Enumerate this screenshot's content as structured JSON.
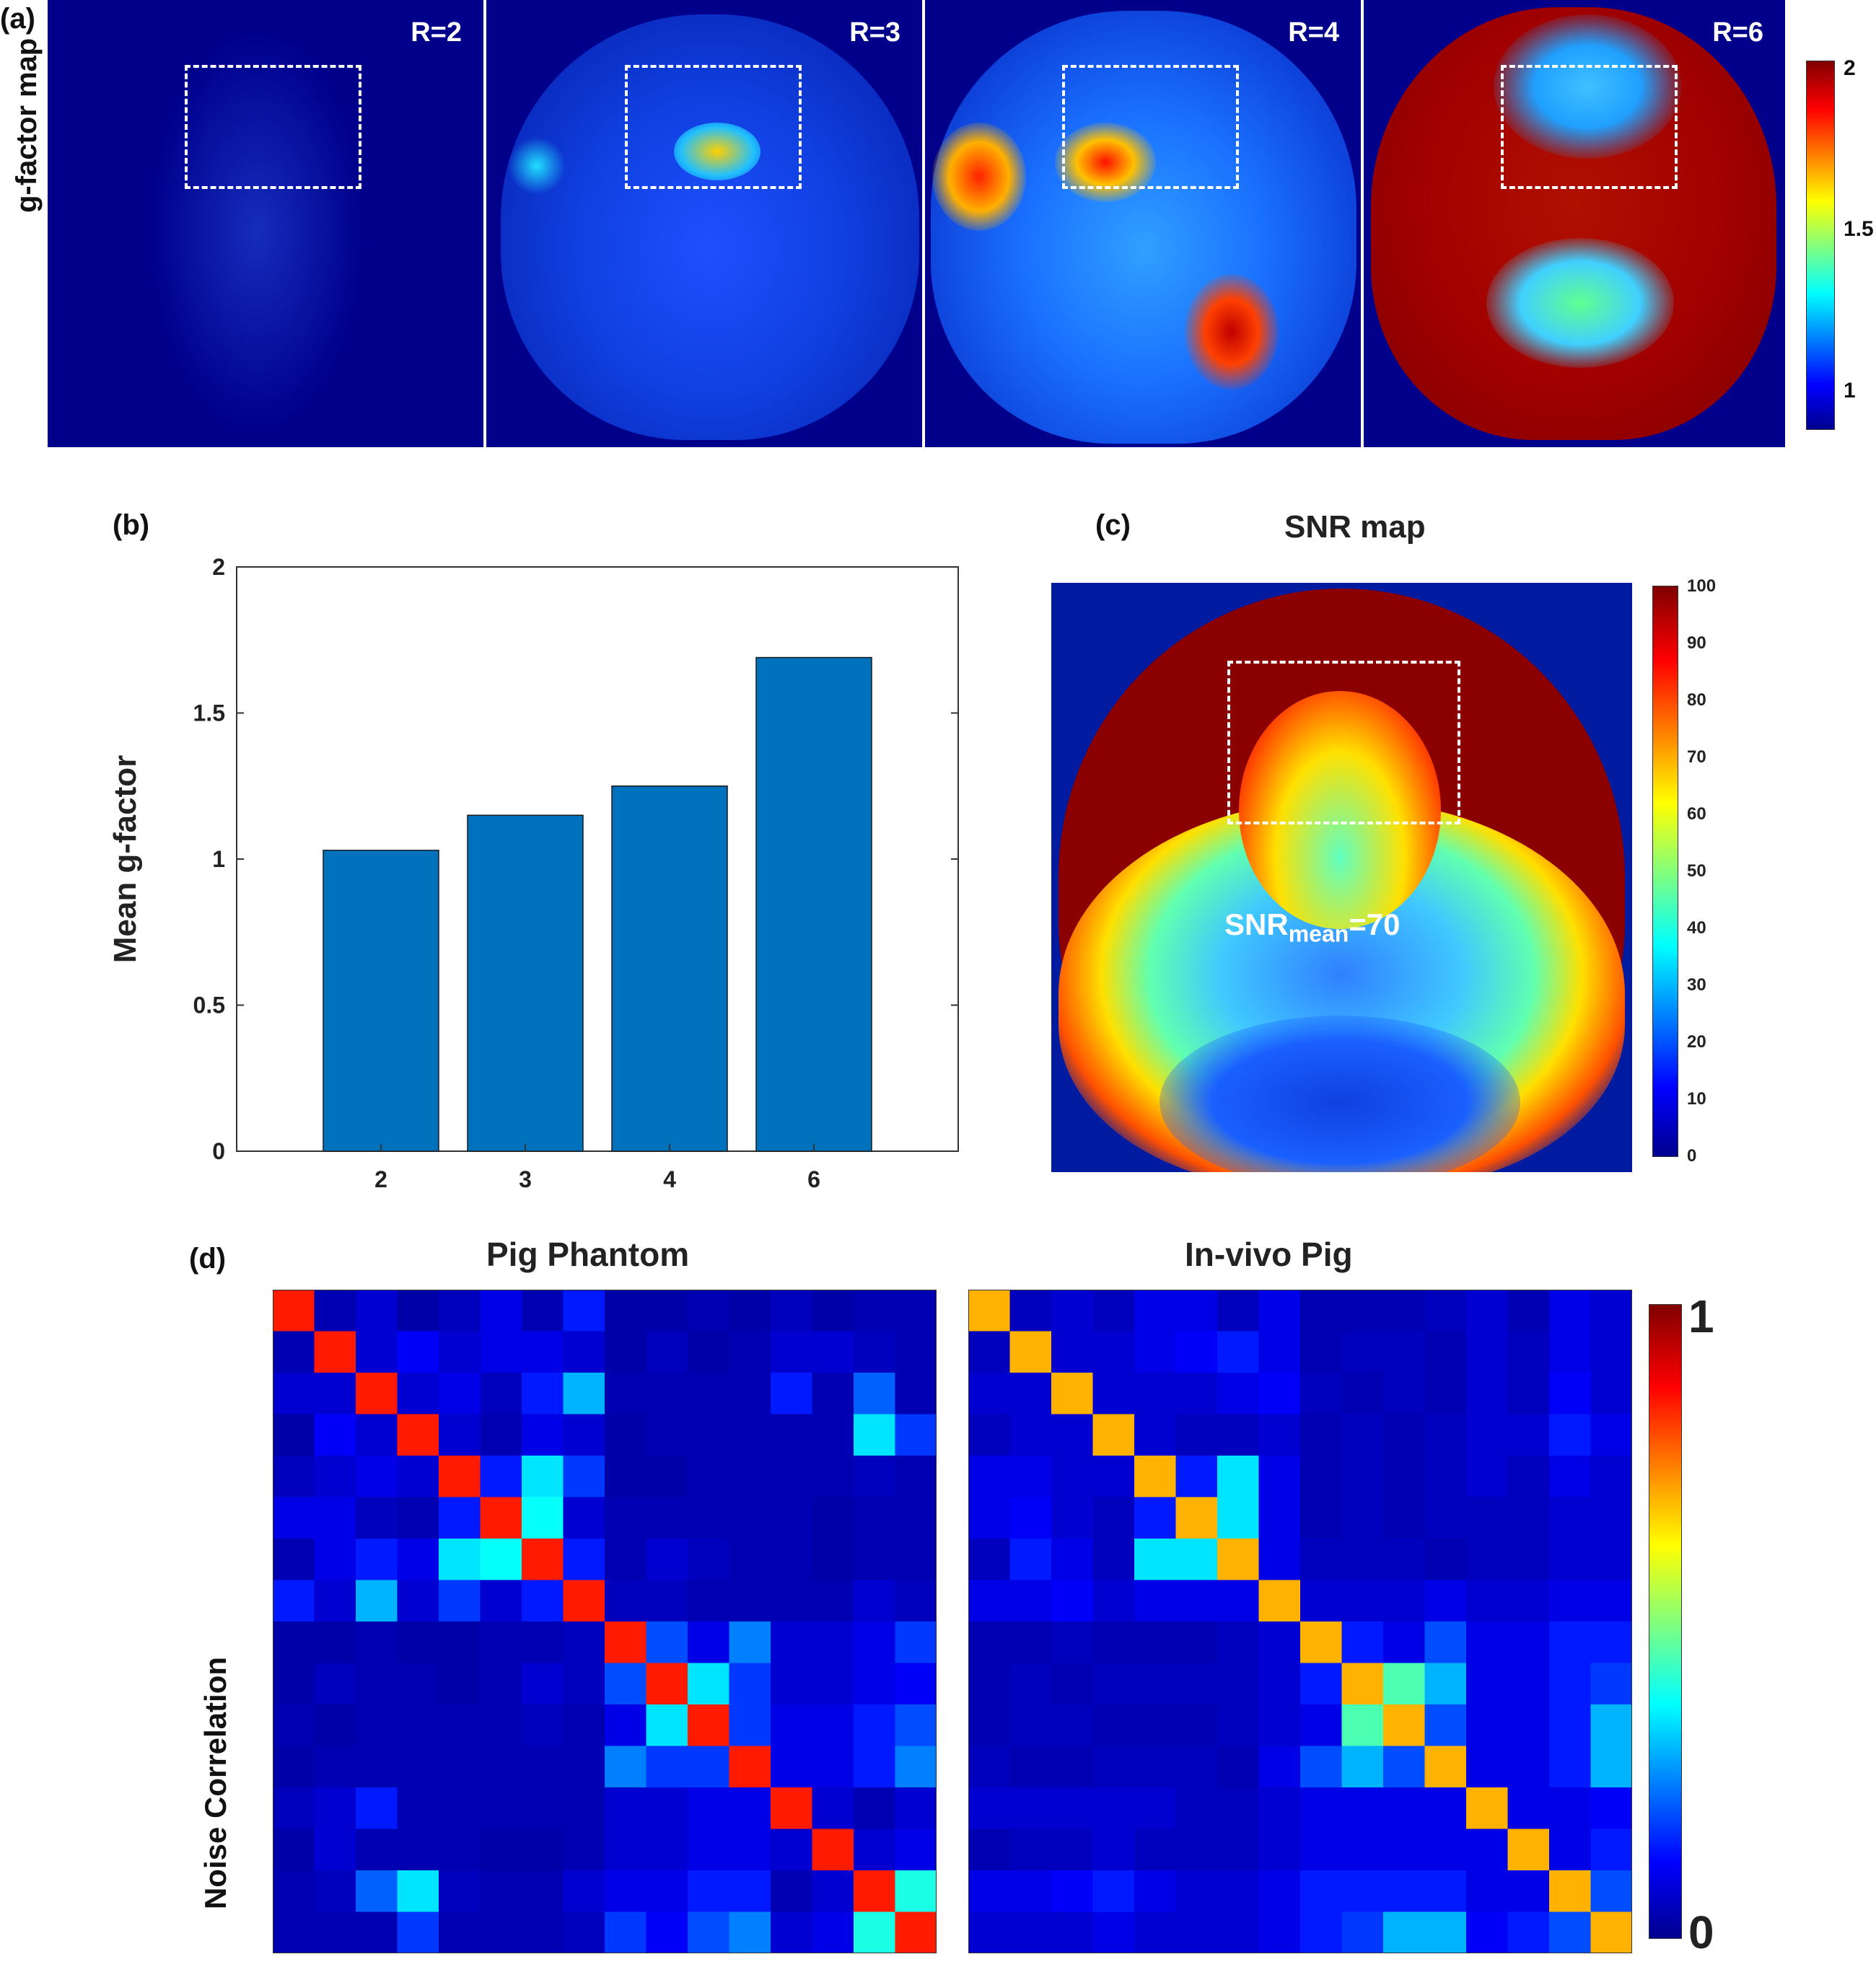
{
  "panel_a": {
    "letter": "(a)",
    "row_label": "g-factor map",
    "maps": [
      "R=2",
      "R=3",
      "R=4",
      "R=6"
    ],
    "colorbar_ticks": [
      "2",
      "1.5",
      "1"
    ],
    "colorbar_range": [
      0.9,
      2
    ]
  },
  "panel_b": {
    "letter": "(b)"
  },
  "panel_c": {
    "letter": "(c)",
    "title": "SNR map",
    "annotation_main": "SNR",
    "annotation_sub": "mean",
    "annotation_value": "=70",
    "colorbar_ticks": [
      "100",
      "90",
      "80",
      "70",
      "60",
      "50",
      "40",
      "30",
      "20",
      "10",
      "0"
    ]
  },
  "panel_d": {
    "letter": "(d)",
    "ylabel": "Noise Correlation",
    "titles": [
      "Pig Phantom",
      "In-vivo Pig"
    ],
    "colorbar_ticks": [
      "1",
      "0"
    ]
  },
  "colors": {
    "bar": "#0072bd",
    "jet_dark_red": "#800000",
    "jet_dark_blue": "#00008b"
  },
  "chart_data": [
    {
      "type": "bar",
      "categories": [
        "2",
        "3",
        "4",
        "6"
      ],
      "values": [
        1.03,
        1.15,
        1.25,
        1.69
      ],
      "title": "",
      "xlabel": "",
      "ylabel": "Mean g-factor",
      "ylim": [
        0,
        2
      ],
      "yticks": [
        "0",
        "0.5",
        "1",
        "1.5",
        "2"
      ]
    },
    {
      "type": "heatmap",
      "title": "Pig Phantom",
      "range": [
        0,
        1
      ],
      "matrix": [
        [
          0.85,
          0.05,
          0.08,
          0.04,
          0.06,
          0.1,
          0.05,
          0.15,
          0.04,
          0.04,
          0.05,
          0.04,
          0.06,
          0.04,
          0.05,
          0.05
        ],
        [
          0.05,
          0.85,
          0.08,
          0.12,
          0.08,
          0.1,
          0.1,
          0.08,
          0.04,
          0.06,
          0.04,
          0.05,
          0.08,
          0.08,
          0.06,
          0.05
        ],
        [
          0.08,
          0.08,
          0.85,
          0.08,
          0.1,
          0.06,
          0.15,
          0.3,
          0.05,
          0.05,
          0.05,
          0.05,
          0.15,
          0.05,
          0.22,
          0.05
        ],
        [
          0.04,
          0.12,
          0.08,
          0.85,
          0.08,
          0.05,
          0.1,
          0.08,
          0.04,
          0.05,
          0.05,
          0.05,
          0.05,
          0.05,
          0.35,
          0.18
        ],
        [
          0.06,
          0.08,
          0.1,
          0.08,
          0.85,
          0.15,
          0.35,
          0.18,
          0.04,
          0.04,
          0.05,
          0.05,
          0.05,
          0.05,
          0.06,
          0.05
        ],
        [
          0.1,
          0.1,
          0.06,
          0.05,
          0.15,
          0.85,
          0.38,
          0.08,
          0.05,
          0.05,
          0.05,
          0.05,
          0.05,
          0.04,
          0.05,
          0.05
        ],
        [
          0.05,
          0.1,
          0.15,
          0.1,
          0.35,
          0.38,
          0.85,
          0.15,
          0.05,
          0.08,
          0.06,
          0.05,
          0.05,
          0.04,
          0.05,
          0.05
        ],
        [
          0.15,
          0.08,
          0.3,
          0.08,
          0.18,
          0.08,
          0.15,
          0.85,
          0.06,
          0.06,
          0.05,
          0.05,
          0.05,
          0.05,
          0.08,
          0.06
        ],
        [
          0.04,
          0.04,
          0.05,
          0.04,
          0.04,
          0.05,
          0.05,
          0.06,
          0.85,
          0.2,
          0.1,
          0.25,
          0.08,
          0.08,
          0.1,
          0.18
        ],
        [
          0.04,
          0.06,
          0.05,
          0.05,
          0.04,
          0.05,
          0.08,
          0.06,
          0.2,
          0.85,
          0.35,
          0.18,
          0.08,
          0.08,
          0.1,
          0.12
        ],
        [
          0.05,
          0.04,
          0.05,
          0.05,
          0.05,
          0.05,
          0.06,
          0.05,
          0.1,
          0.35,
          0.85,
          0.18,
          0.1,
          0.1,
          0.15,
          0.2
        ],
        [
          0.04,
          0.05,
          0.05,
          0.05,
          0.05,
          0.05,
          0.05,
          0.05,
          0.25,
          0.18,
          0.18,
          0.85,
          0.1,
          0.1,
          0.15,
          0.25
        ],
        [
          0.06,
          0.08,
          0.15,
          0.05,
          0.05,
          0.05,
          0.05,
          0.05,
          0.08,
          0.08,
          0.1,
          0.1,
          0.85,
          0.08,
          0.05,
          0.08
        ],
        [
          0.04,
          0.08,
          0.05,
          0.05,
          0.05,
          0.04,
          0.04,
          0.05,
          0.08,
          0.08,
          0.1,
          0.1,
          0.08,
          0.85,
          0.08,
          0.1
        ],
        [
          0.05,
          0.06,
          0.22,
          0.35,
          0.06,
          0.05,
          0.05,
          0.08,
          0.1,
          0.1,
          0.15,
          0.15,
          0.05,
          0.08,
          0.85,
          0.4
        ],
        [
          0.05,
          0.05,
          0.05,
          0.18,
          0.05,
          0.05,
          0.05,
          0.06,
          0.18,
          0.12,
          0.2,
          0.25,
          0.08,
          0.1,
          0.4,
          0.85
        ]
      ]
    },
    {
      "type": "heatmap",
      "title": "In-vivo Pig",
      "range": [
        0,
        1
      ],
      "matrix": [
        [
          0.7,
          0.06,
          0.08,
          0.06,
          0.1,
          0.1,
          0.06,
          0.1,
          0.05,
          0.05,
          0.05,
          0.06,
          0.08,
          0.05,
          0.1,
          0.08
        ],
        [
          0.06,
          0.7,
          0.08,
          0.08,
          0.1,
          0.12,
          0.15,
          0.1,
          0.05,
          0.06,
          0.06,
          0.05,
          0.08,
          0.06,
          0.1,
          0.08
        ],
        [
          0.08,
          0.08,
          0.7,
          0.08,
          0.08,
          0.08,
          0.1,
          0.12,
          0.06,
          0.05,
          0.06,
          0.05,
          0.08,
          0.06,
          0.12,
          0.08
        ],
        [
          0.06,
          0.08,
          0.08,
          0.7,
          0.08,
          0.06,
          0.06,
          0.08,
          0.05,
          0.06,
          0.05,
          0.06,
          0.08,
          0.08,
          0.15,
          0.1
        ],
        [
          0.1,
          0.1,
          0.08,
          0.08,
          0.7,
          0.15,
          0.35,
          0.1,
          0.05,
          0.06,
          0.05,
          0.06,
          0.08,
          0.06,
          0.1,
          0.08
        ],
        [
          0.1,
          0.12,
          0.08,
          0.06,
          0.15,
          0.7,
          0.35,
          0.1,
          0.05,
          0.06,
          0.05,
          0.06,
          0.06,
          0.06,
          0.08,
          0.08
        ],
        [
          0.06,
          0.15,
          0.1,
          0.06,
          0.35,
          0.35,
          0.7,
          0.1,
          0.06,
          0.06,
          0.06,
          0.05,
          0.06,
          0.06,
          0.08,
          0.08
        ],
        [
          0.1,
          0.1,
          0.12,
          0.08,
          0.1,
          0.1,
          0.1,
          0.7,
          0.08,
          0.08,
          0.08,
          0.1,
          0.08,
          0.08,
          0.1,
          0.1
        ],
        [
          0.05,
          0.05,
          0.06,
          0.05,
          0.05,
          0.05,
          0.06,
          0.08,
          0.7,
          0.15,
          0.1,
          0.2,
          0.1,
          0.1,
          0.15,
          0.15
        ],
        [
          0.05,
          0.06,
          0.05,
          0.06,
          0.06,
          0.06,
          0.06,
          0.08,
          0.15,
          0.7,
          0.45,
          0.3,
          0.1,
          0.1,
          0.15,
          0.18
        ],
        [
          0.05,
          0.06,
          0.06,
          0.05,
          0.05,
          0.05,
          0.06,
          0.08,
          0.1,
          0.45,
          0.7,
          0.2,
          0.1,
          0.1,
          0.15,
          0.3
        ],
        [
          0.06,
          0.05,
          0.05,
          0.06,
          0.06,
          0.06,
          0.05,
          0.1,
          0.2,
          0.3,
          0.2,
          0.7,
          0.1,
          0.1,
          0.15,
          0.3
        ],
        [
          0.08,
          0.08,
          0.08,
          0.08,
          0.08,
          0.06,
          0.06,
          0.08,
          0.1,
          0.1,
          0.1,
          0.1,
          0.7,
          0.1,
          0.1,
          0.12
        ],
        [
          0.05,
          0.06,
          0.06,
          0.08,
          0.06,
          0.06,
          0.06,
          0.08,
          0.1,
          0.1,
          0.1,
          0.1,
          0.1,
          0.7,
          0.1,
          0.15
        ],
        [
          0.1,
          0.1,
          0.12,
          0.15,
          0.1,
          0.08,
          0.08,
          0.1,
          0.15,
          0.15,
          0.15,
          0.15,
          0.1,
          0.1,
          0.7,
          0.2
        ],
        [
          0.08,
          0.08,
          0.08,
          0.1,
          0.08,
          0.08,
          0.08,
          0.1,
          0.15,
          0.18,
          0.3,
          0.3,
          0.12,
          0.15,
          0.2,
          0.7
        ]
      ]
    }
  ]
}
